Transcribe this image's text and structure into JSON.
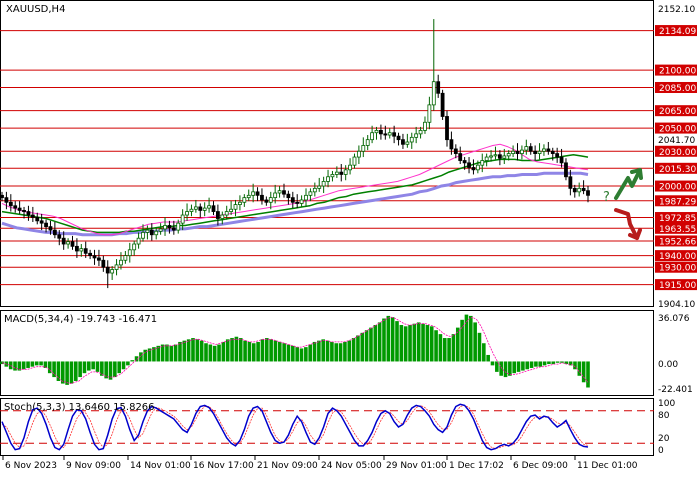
{
  "chart_data": {
    "type": "candlestick",
    "symbol": "XAUUSD,H4",
    "colors": {
      "bull": "#006400",
      "bear": "#000000",
      "level_line": "#d10000",
      "level_tag_bg": "#d10000",
      "ma_fast": "#ff33cc",
      "ma_mid": "#008000",
      "ma_slow": "#8f85e6",
      "macd_hist": "#009900",
      "macd_signal": "#ff00aa",
      "stoch_main": "#0000cc",
      "stoch_signal": "#ff3333",
      "arrow": "#2e7d32",
      "arrow_down": "#b71c1c"
    },
    "x_labels": [
      "6 Nov 2023",
      "9 Nov 09:00",
      "14 Nov 01:00",
      "16 Nov 17:00",
      "21 Nov 09:00",
      "24 Nov 05:00",
      "29 Nov 01:00",
      "1 Dec 17:02",
      "6 Dec 09:00",
      "11 Dec 01:00"
    ],
    "price_axis": {
      "labels": [
        "2152.10",
        "2041.70",
        "1904.10"
      ],
      "range": [
        1900,
        2157
      ]
    },
    "levels": [
      {
        "value": 2134.09,
        "label": "2134.09"
      },
      {
        "value": 2100.0,
        "label": "2100.00"
      },
      {
        "value": 2085.0,
        "label": "2085.00"
      },
      {
        "value": 2065.0,
        "label": "2065.00"
      },
      {
        "value": 2050.0,
        "label": "2050.00"
      },
      {
        "value": 2030.0,
        "label": "2030.00"
      },
      {
        "value": 2015.3,
        "label": "2015.30"
      },
      {
        "value": 2000.0,
        "label": "2000.00"
      },
      {
        "value": 1987.29,
        "label": "1987.29"
      },
      {
        "value": 1972.85,
        "label": "1972.85"
      },
      {
        "value": 1963.55,
        "label": "1963.55"
      },
      {
        "value": 1952.66,
        "label": "1952.66"
      },
      {
        "value": 1940.0,
        "label": "1940.00"
      },
      {
        "value": 1930.0,
        "label": "1930.00"
      },
      {
        "value": 1915.0,
        "label": "1915.00"
      }
    ],
    "macd": {
      "title": "MACD(5,34,4) -19.743 -16.471",
      "axis_labels": [
        "36.076",
        "0.00",
        "-22.401"
      ],
      "range": [
        -25,
        38
      ],
      "hist": [
        -2,
        -4,
        -6,
        -7,
        -7,
        -6,
        -5,
        -4,
        -3,
        -3,
        -5,
        -9,
        -12,
        -15,
        -17,
        -18,
        -17,
        -15,
        -12,
        -9,
        -7,
        -6,
        -8,
        -11,
        -13,
        -14,
        -12,
        -9,
        -6,
        -3,
        1,
        4,
        7,
        9,
        10,
        11,
        12,
        13,
        13,
        12,
        13,
        15,
        16,
        17,
        18,
        17,
        16,
        14,
        13,
        12,
        13,
        15,
        17,
        18,
        19,
        18,
        16,
        15,
        14,
        15,
        17,
        18,
        17,
        16,
        15,
        14,
        13,
        12,
        11,
        10,
        11,
        13,
        15,
        16,
        17,
        16,
        15,
        14,
        14,
        15,
        16,
        18,
        20,
        22,
        24,
        26,
        28,
        30,
        33,
        35,
        34,
        31,
        28,
        27,
        28,
        29,
        30,
        29,
        28,
        27,
        24,
        21,
        18,
        18,
        21,
        26,
        32,
        36,
        35,
        30,
        22,
        14,
        5,
        -3,
        -8,
        -11,
        -12,
        -11,
        -9,
        -8,
        -7,
        -6,
        -5,
        -4,
        -4,
        -3,
        -2,
        -2,
        -1,
        -1,
        -2,
        -3,
        -6,
        -11,
        -16,
        -20
      ],
      "signal": [
        -1,
        -2,
        -3,
        -5,
        -6,
        -6,
        -6,
        -5,
        -4,
        -4,
        -4,
        -6,
        -9,
        -12,
        -15,
        -16,
        -17,
        -16,
        -15,
        -12,
        -10,
        -8,
        -8,
        -9,
        -11,
        -12,
        -12,
        -11,
        -9,
        -6,
        -3,
        0,
        3,
        6,
        8,
        9,
        10,
        11,
        12,
        12,
        12,
        13,
        14,
        15,
        16,
        17,
        17,
        16,
        15,
        14,
        13,
        14,
        15,
        16,
        17,
        17,
        17,
        16,
        15,
        15,
        16,
        17,
        17,
        17,
        16,
        15,
        14,
        13,
        12,
        11,
        11,
        12,
        13,
        14,
        15,
        16,
        16,
        15,
        15,
        15,
        15,
        16,
        17,
        19,
        21,
        23,
        25,
        27,
        29,
        31,
        33,
        34,
        33,
        31,
        29,
        28,
        28,
        29,
        29,
        29,
        28,
        27,
        25,
        22,
        20,
        19,
        21,
        24,
        28,
        32,
        34,
        32,
        27,
        20,
        12,
        5,
        -1,
        -6,
        -9,
        -10,
        -10,
        -9,
        -8,
        -7,
        -6,
        -5,
        -4,
        -4,
        -3,
        -2,
        -2,
        -1,
        -2,
        -2,
        -4,
        -8,
        -12,
        -16
      ]
    },
    "stoch": {
      "title": "Stoch(5,3,3) 13.6460 15.8266",
      "axis_labels": [
        "100",
        "80",
        "20",
        "0"
      ],
      "range": [
        0,
        100
      ],
      "levels": [
        80,
        20
      ],
      "main": [
        60,
        40,
        20,
        8,
        10,
        30,
        60,
        82,
        85,
        75,
        55,
        30,
        12,
        8,
        18,
        45,
        70,
        82,
        80,
        65,
        40,
        18,
        8,
        10,
        35,
        65,
        84,
        86,
        70,
        45,
        25,
        35,
        60,
        80,
        88,
        85,
        80,
        75,
        70,
        65,
        55,
        45,
        40,
        55,
        75,
        88,
        90,
        86,
        75,
        60,
        45,
        30,
        20,
        15,
        25,
        45,
        70,
        85,
        88,
        80,
        60,
        40,
        25,
        20,
        22,
        35,
        55,
        70,
        60,
        40,
        22,
        18,
        30,
        50,
        75,
        85,
        80,
        70,
        55,
        40,
        25,
        15,
        15,
        25,
        40,
        60,
        75,
        80,
        75,
        60,
        50,
        55,
        72,
        85,
        90,
        88,
        80,
        70,
        55,
        45,
        40,
        50,
        72,
        88,
        92,
        90,
        80,
        65,
        45,
        25,
        12,
        8,
        10,
        15,
        18,
        15,
        20,
        30,
        45,
        60,
        70,
        72,
        65,
        70,
        68,
        58,
        50,
        55,
        62,
        45,
        30,
        18,
        14,
        13
      ],
      "signal": [
        55,
        50,
        35,
        20,
        12,
        15,
        35,
        58,
        75,
        80,
        70,
        52,
        32,
        16,
        12,
        24,
        45,
        66,
        77,
        76,
        63,
        42,
        22,
        12,
        18,
        37,
        62,
        80,
        80,
        65,
        45,
        30,
        38,
        58,
        76,
        86,
        84,
        80,
        75,
        70,
        62,
        52,
        45,
        50,
        65,
        80,
        88,
        88,
        80,
        68,
        52,
        38,
        26,
        18,
        20,
        32,
        52,
        72,
        84,
        85,
        72,
        52,
        34,
        24,
        22,
        28,
        42,
        58,
        64,
        52,
        35,
        24,
        24,
        36,
        58,
        76,
        82,
        78,
        66,
        52,
        38,
        26,
        18,
        18,
        28,
        45,
        62,
        75,
        78,
        70,
        60,
        55,
        62,
        76,
        86,
        90,
        86,
        78,
        66,
        54,
        46,
        46,
        58,
        76,
        88,
        90,
        86,
        74,
        56,
        38,
        22,
        13,
        10,
        12,
        15,
        16,
        17,
        22,
        33,
        47,
        60,
        68,
        69,
        68,
        69,
        64,
        58,
        55,
        58,
        52,
        40,
        28,
        18,
        16
      ]
    },
    "price_series": {
      "ma_fast": [
        1985,
        1982,
        1980,
        1978,
        1977,
        1976,
        1975,
        1974,
        1972,
        1969,
        1966,
        1963,
        1961,
        1959,
        1958,
        1958,
        1959,
        1961,
        1963,
        1965,
        1967,
        1968,
        1969,
        1969,
        1969,
        1970,
        1971,
        1972,
        1973,
        1974,
        1975,
        1976,
        1977,
        1978,
        1979,
        1980,
        1981,
        1982,
        1983,
        1984,
        1985,
        1986,
        1988,
        1990,
        1992,
        1994,
        1996,
        1997,
        1998,
        1999,
        2000,
        2001,
        2002,
        2003,
        2004,
        2006,
        2008,
        2010,
        2013,
        2016,
        2019,
        2022,
        2025,
        2027,
        2029,
        2031,
        2033,
        2035,
        2036,
        2034,
        2031,
        2027,
        2023,
        2021,
        2020,
        2019,
        2018,
        2017,
        2016,
        2015,
        2014
      ],
      "ma_mid": [
        1978,
        1977,
        1976,
        1975,
        1974,
        1973,
        1972,
        1970,
        1968,
        1966,
        1964,
        1962,
        1961,
        1960,
        1960,
        1960,
        1960,
        1961,
        1961,
        1962,
        1963,
        1964,
        1965,
        1965,
        1966,
        1966,
        1967,
        1968,
        1969,
        1970,
        1971,
        1972,
        1973,
        1974,
        1975,
        1976,
        1977,
        1978,
        1979,
        1980,
        1981,
        1982,
        1983,
        1985,
        1986,
        1988,
        1990,
        1991,
        1993,
        1994,
        1995,
        1996,
        1997,
        1998,
        1999,
        2000,
        2001,
        2003,
        2005,
        2007,
        2009,
        2012,
        2014,
        2016,
        2018,
        2020,
        2021,
        2022,
        2023,
        2023,
        2023,
        2022,
        2022,
        2022,
        2023,
        2024,
        2025,
        2026,
        2027,
        2026,
        2025
      ],
      "ma_slow": [
        1968,
        1966,
        1964,
        1963,
        1962,
        1961,
        1960,
        1960,
        1959,
        1959,
        1959,
        1958,
        1958,
        1958,
        1958,
        1958,
        1959,
        1959,
        1960,
        1960,
        1961,
        1961,
        1962,
        1962,
        1963,
        1963,
        1964,
        1965,
        1965,
        1966,
        1967,
        1968,
        1969,
        1970,
        1971,
        1972,
        1973,
        1974,
        1975,
        1976,
        1977,
        1978,
        1979,
        1980,
        1981,
        1982,
        1983,
        1984,
        1985,
        1986,
        1987,
        1988,
        1989,
        1990,
        1991,
        1992,
        1993,
        1995,
        1996,
        1998,
        2000,
        2001,
        2003,
        2004,
        2005,
        2006,
        2007,
        2008,
        2008,
        2009,
        2009,
        2010,
        2010,
        2010,
        2011,
        2011,
        2011,
        2011,
        2011,
        2011,
        2010
      ]
    }
  },
  "annotations": {
    "question_mark": "?"
  }
}
